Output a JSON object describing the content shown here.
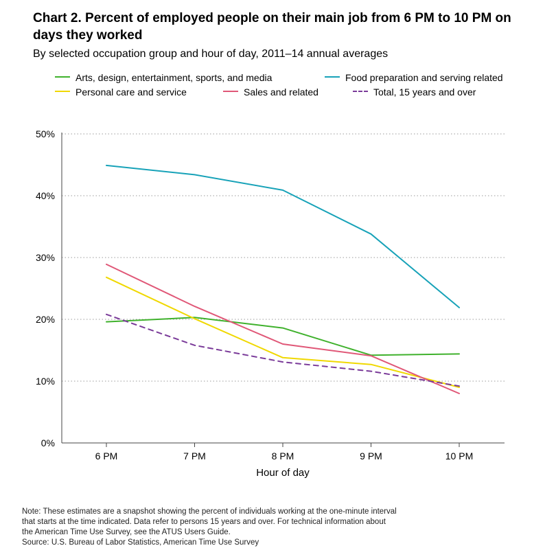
{
  "title": "Chart 2. Percent of employed people on their main job from 6 PM to 10 PM on days they worked",
  "subtitle": "By selected occupation group and hour of day, 2011–14 annual averages",
  "chart_data": {
    "type": "line",
    "title": "Chart 2. Percent of employed people on their main job from 6 PM to 10 PM on days they worked",
    "subtitle": "By selected occupation group and hour of day, 2011–14 annual averages",
    "xlabel": "Hour of day",
    "ylabel": "",
    "categories": [
      "6 PM",
      "7 PM",
      "8 PM",
      "9 PM",
      "10 PM"
    ],
    "ylim": [
      0,
      50
    ],
    "yticks": [
      0,
      10,
      20,
      30,
      40,
      50
    ],
    "ytick_labels": [
      "0%",
      "10%",
      "20%",
      "30%",
      "40%",
      "50%"
    ],
    "grid": "horizontal dotted",
    "legend_position": "top",
    "series": [
      {
        "name": "Arts, design, entertainment, sports, and media",
        "color": "#3fb12c",
        "dash": "solid",
        "values": [
          19.6,
          20.3,
          18.6,
          14.2,
          14.4
        ]
      },
      {
        "name": "Food preparation and serving related",
        "color": "#17a2b8",
        "dash": "solid",
        "values": [
          44.9,
          43.4,
          40.9,
          33.8,
          21.9
        ]
      },
      {
        "name": "Personal care and service",
        "color": "#f0d800",
        "dash": "solid",
        "values": [
          26.8,
          20.1,
          13.8,
          12.7,
          9.0
        ]
      },
      {
        "name": "Sales and related",
        "color": "#e05777",
        "dash": "solid",
        "values": [
          28.9,
          22.1,
          16.0,
          14.1,
          8.0
        ]
      },
      {
        "name": "Total, 15 years and over",
        "color": "#7a3a99",
        "dash": "dashed",
        "values": [
          20.8,
          15.8,
          13.1,
          11.6,
          9.2
        ]
      }
    ]
  },
  "notes": {
    "note": "Note: These estimates are a snapshot showing the percent of individuals working at the one-minute interval\n that starts at the time indicated. Data refer to persons 15 years and over. For technical information about\n the American Time Use Survey, see the ATUS Users Guide.",
    "source": "Source: U.S. Bureau of Labor Statistics, American Time Use Survey"
  }
}
